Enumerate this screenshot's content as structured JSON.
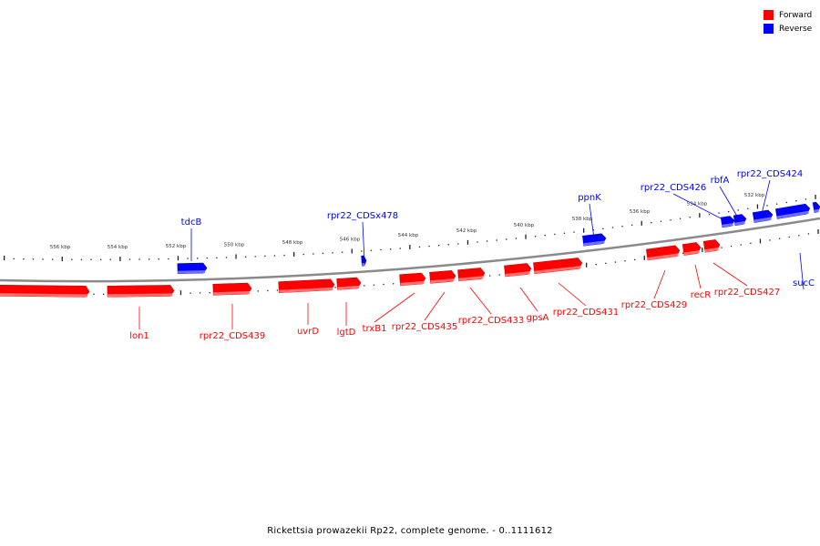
{
  "legend": {
    "forward_label": "Forward",
    "forward_color": "#ff0000",
    "reverse_label": "Reverse",
    "reverse_color": "#0000ff"
  },
  "caption": "Rickettsia prowazekii Rp22, complete genome. - 0..1111612",
  "scale_labels": [
    "556 kbp",
    "554 kbp",
    "552 kbp",
    "550 kbp",
    "548 kbp",
    "546 kbp",
    "544 kbp",
    "542 kbp",
    "540 kbp",
    "538 kbp",
    "536 kbp",
    "534 kbp",
    "532 kbp"
  ],
  "genes": [
    {
      "name": "lon1",
      "strand": "forward"
    },
    {
      "name": "rpr22_CDS439",
      "strand": "forward"
    },
    {
      "name": "uvrD",
      "strand": "forward"
    },
    {
      "name": "lgtD",
      "strand": "forward"
    },
    {
      "name": "trxB1",
      "strand": "forward"
    },
    {
      "name": "rpr22_CDS435",
      "strand": "forward"
    },
    {
      "name": "rpr22_CDS433",
      "strand": "forward"
    },
    {
      "name": "gpsA",
      "strand": "forward"
    },
    {
      "name": "rpr22_CDS431",
      "strand": "forward"
    },
    {
      "name": "rpr22_CDS429",
      "strand": "forward"
    },
    {
      "name": "recR",
      "strand": "forward"
    },
    {
      "name": "rpr22_CDS427",
      "strand": "forward"
    },
    {
      "name": "tdcB",
      "strand": "reverse"
    },
    {
      "name": "rpr22_CDSx478",
      "strand": "reverse"
    },
    {
      "name": "ppnK",
      "strand": "reverse"
    },
    {
      "name": "rpr22_CDS426",
      "strand": "reverse"
    },
    {
      "name": "rbfA",
      "strand": "reverse"
    },
    {
      "name": "rpr22_CDS424",
      "strand": "reverse"
    },
    {
      "name": "sucC",
      "strand": "reverse"
    }
  ]
}
